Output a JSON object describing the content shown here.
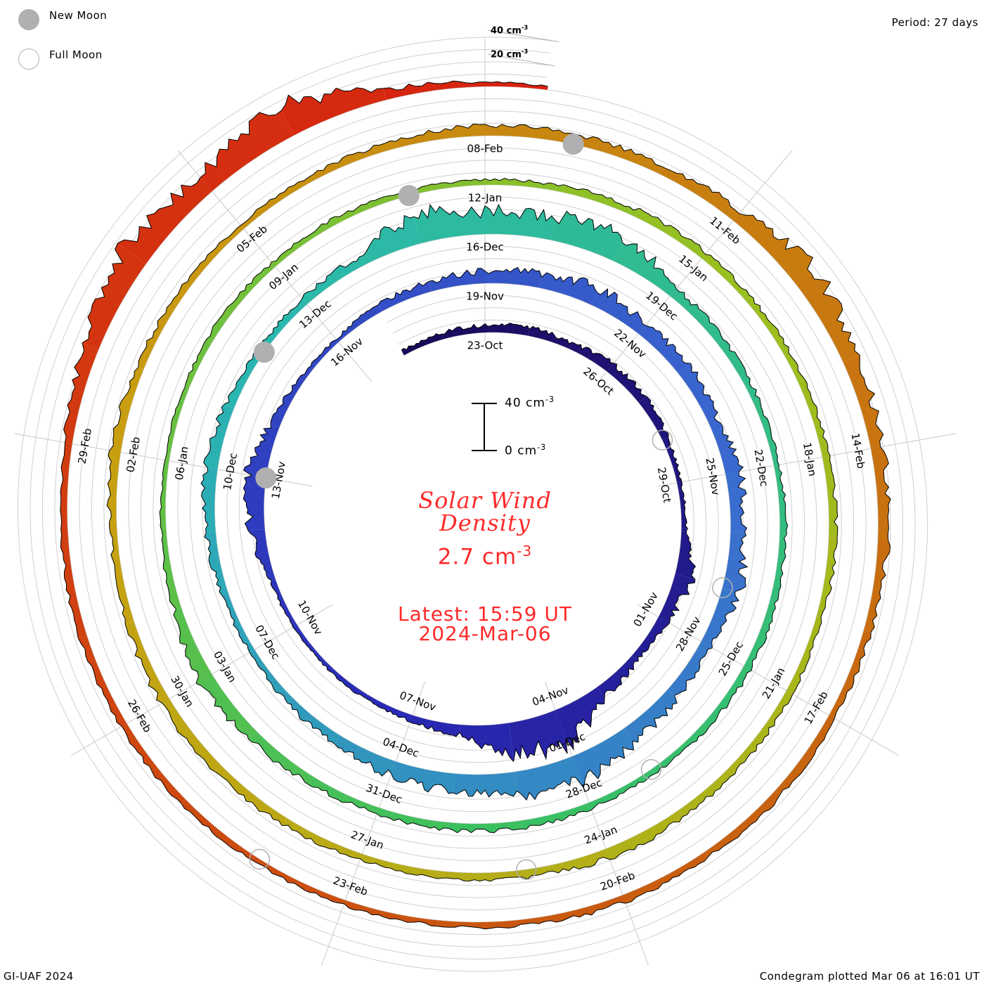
{
  "legend": {
    "new_moon": "New Moon",
    "full_moon": "Full Moon"
  },
  "period": "Period: 27 days",
  "footer_left": "GI-UAF 2024",
  "footer_right": "Condegram plotted Mar 06 at 16:01 UT",
  "center": {
    "title_line1": "Solar Wind",
    "title_line2": "Density",
    "value": "2.7 cm",
    "value_exp": "-3",
    "latest": "Latest: 15:59 UT",
    "latest_date": "2024-Mar-06"
  },
  "scale_bar": {
    "top_label": "40 cm",
    "bottom_label": "0 cm",
    "exp": "-3"
  },
  "outer_scale": {
    "label_40": "40 cm",
    "label_20": "20 cm",
    "exp": "-3"
  },
  "chart_data": {
    "type": "area",
    "subtype": "condegram-spiral",
    "title": "Solar Wind Density",
    "units": "cm^-3",
    "period_days": 27,
    "start_date": "2023-10-21",
    "end": "2024-03-06 15:59 UT",
    "scale_cm3_per_rotation": 40,
    "grid_step_cm3": 10,
    "daily_values": [
      4,
      5,
      6,
      7,
      5,
      8,
      7,
      5,
      3,
      4,
      14,
      8,
      6,
      10,
      30,
      25,
      8,
      5,
      4,
      3,
      3,
      4,
      12,
      15,
      8,
      4,
      3,
      6,
      8,
      10,
      12,
      15,
      10,
      12,
      8,
      12,
      10,
      15,
      8,
      10,
      14,
      22,
      20,
      15,
      12,
      8,
      6,
      4,
      5,
      8,
      10,
      8,
      5,
      6,
      8,
      25,
      18,
      20,
      22,
      8,
      6,
      5,
      4,
      5,
      5,
      6,
      5,
      4,
      5,
      6,
      6,
      5,
      6,
      8,
      12,
      6,
      4,
      3,
      4,
      5,
      4,
      5,
      4,
      4,
      5,
      6,
      6,
      5,
      5,
      5,
      6,
      5,
      5,
      6,
      7,
      8,
      6,
      5,
      5,
      6,
      7,
      8,
      6,
      5,
      8,
      6,
      5,
      4,
      5,
      6,
      8,
      8,
      7,
      10,
      20,
      12,
      10,
      8,
      6,
      5,
      6,
      5,
      6,
      5,
      4,
      4,
      4,
      5,
      5,
      6,
      5,
      6,
      12,
      22,
      15,
      28,
      8,
      3
    ],
    "tick_labels": [
      "23-Oct",
      "26-Oct",
      "29-Oct",
      "01-Nov",
      "04-Nov",
      "07-Nov",
      "10-Nov",
      "13-Nov",
      "16-Nov",
      "19-Nov",
      "22-Nov",
      "25-Nov",
      "28-Nov",
      "01-Dec",
      "04-Dec",
      "07-Dec",
      "10-Dec",
      "13-Dec",
      "16-Dec",
      "19-Dec",
      "22-Dec",
      "25-Dec",
      "28-Dec",
      "31-Dec",
      "03-Jan",
      "06-Jan",
      "09-Jan",
      "12-Jan",
      "15-Jan",
      "18-Jan",
      "21-Jan",
      "24-Jan",
      "27-Jan",
      "30-Jan",
      "02-Feb",
      "05-Feb",
      "08-Feb",
      "11-Feb",
      "14-Feb",
      "17-Feb",
      "20-Feb",
      "23-Feb",
      "26-Feb",
      "29-Feb"
    ],
    "new_moons": [
      "2023-11-13",
      "2023-12-12",
      "2024-01-11",
      "2024-02-09"
    ],
    "full_moons": [
      "2023-10-28",
      "2023-11-27",
      "2023-12-27",
      "2024-01-25",
      "2024-02-24"
    ],
    "colors": [
      "#1a0a5a",
      "#2a2ab8",
      "#3a6ad0",
      "#2ab8b0",
      "#3ac060",
      "#9ac020",
      "#c8a010",
      "#c86010",
      "#d82010"
    ]
  }
}
